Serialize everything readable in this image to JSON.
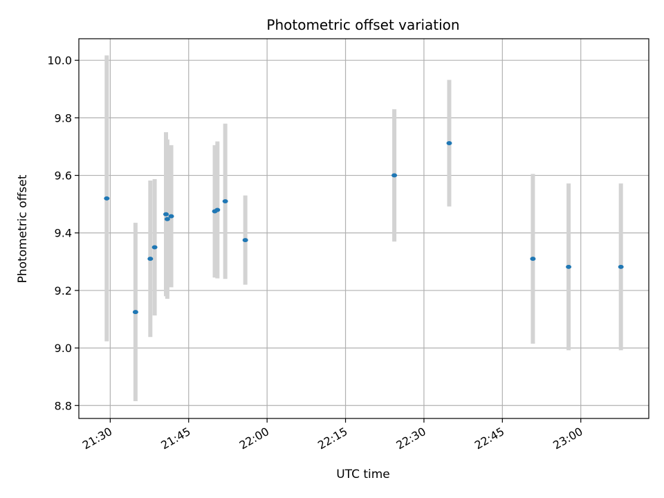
{
  "chart_data": {
    "type": "scatter",
    "title": "Photometric offset variation",
    "xlabel": "UTC time",
    "ylabel": "Photometric offset",
    "x_ticks": [
      "21:30",
      "21:45",
      "22:00",
      "22:15",
      "22:30",
      "22:45",
      "23:00"
    ],
    "y_ticks": [
      "8.8",
      "9.0",
      "9.2",
      "9.4",
      "9.6",
      "9.8",
      "10.0"
    ],
    "xlim": [
      "21:24",
      "23:13"
    ],
    "ylim": [
      8.755,
      10.075
    ],
    "grid": true,
    "colors": {
      "point": "#1f77b4",
      "errorbar": "#d3d3d3",
      "grid": "#b0b0b0"
    },
    "points": [
      {
        "x": "21:29:20",
        "y": 9.52,
        "err": 0.497
      },
      {
        "x": "21:34:50",
        "y": 9.125,
        "err": 0.31
      },
      {
        "x": "21:37:40",
        "y": 9.31,
        "err": 0.272
      },
      {
        "x": "21:38:30",
        "y": 9.35,
        "err": 0.237
      },
      {
        "x": "21:40:40",
        "y": 9.465,
        "err": 0.285
      },
      {
        "x": "21:40:55",
        "y": 9.448,
        "err": 0.277
      },
      {
        "x": "21:41:40",
        "y": 9.458,
        "err": 0.247
      },
      {
        "x": "21:50:00",
        "y": 9.475,
        "err": 0.23
      },
      {
        "x": "21:50:30",
        "y": 9.48,
        "err": 0.238
      },
      {
        "x": "21:52:00",
        "y": 9.51,
        "err": 0.27
      },
      {
        "x": "21:55:50",
        "y": 9.375,
        "err": 0.155
      },
      {
        "x": "22:24:20",
        "y": 9.6,
        "err": 0.23
      },
      {
        "x": "22:34:50",
        "y": 9.712,
        "err": 0.22
      },
      {
        "x": "22:50:50",
        "y": 9.31,
        "err": 0.295
      },
      {
        "x": "22:57:40",
        "y": 9.282,
        "err": 0.29
      },
      {
        "x": "23:07:40",
        "y": 9.282,
        "err": 0.29
      }
    ]
  }
}
